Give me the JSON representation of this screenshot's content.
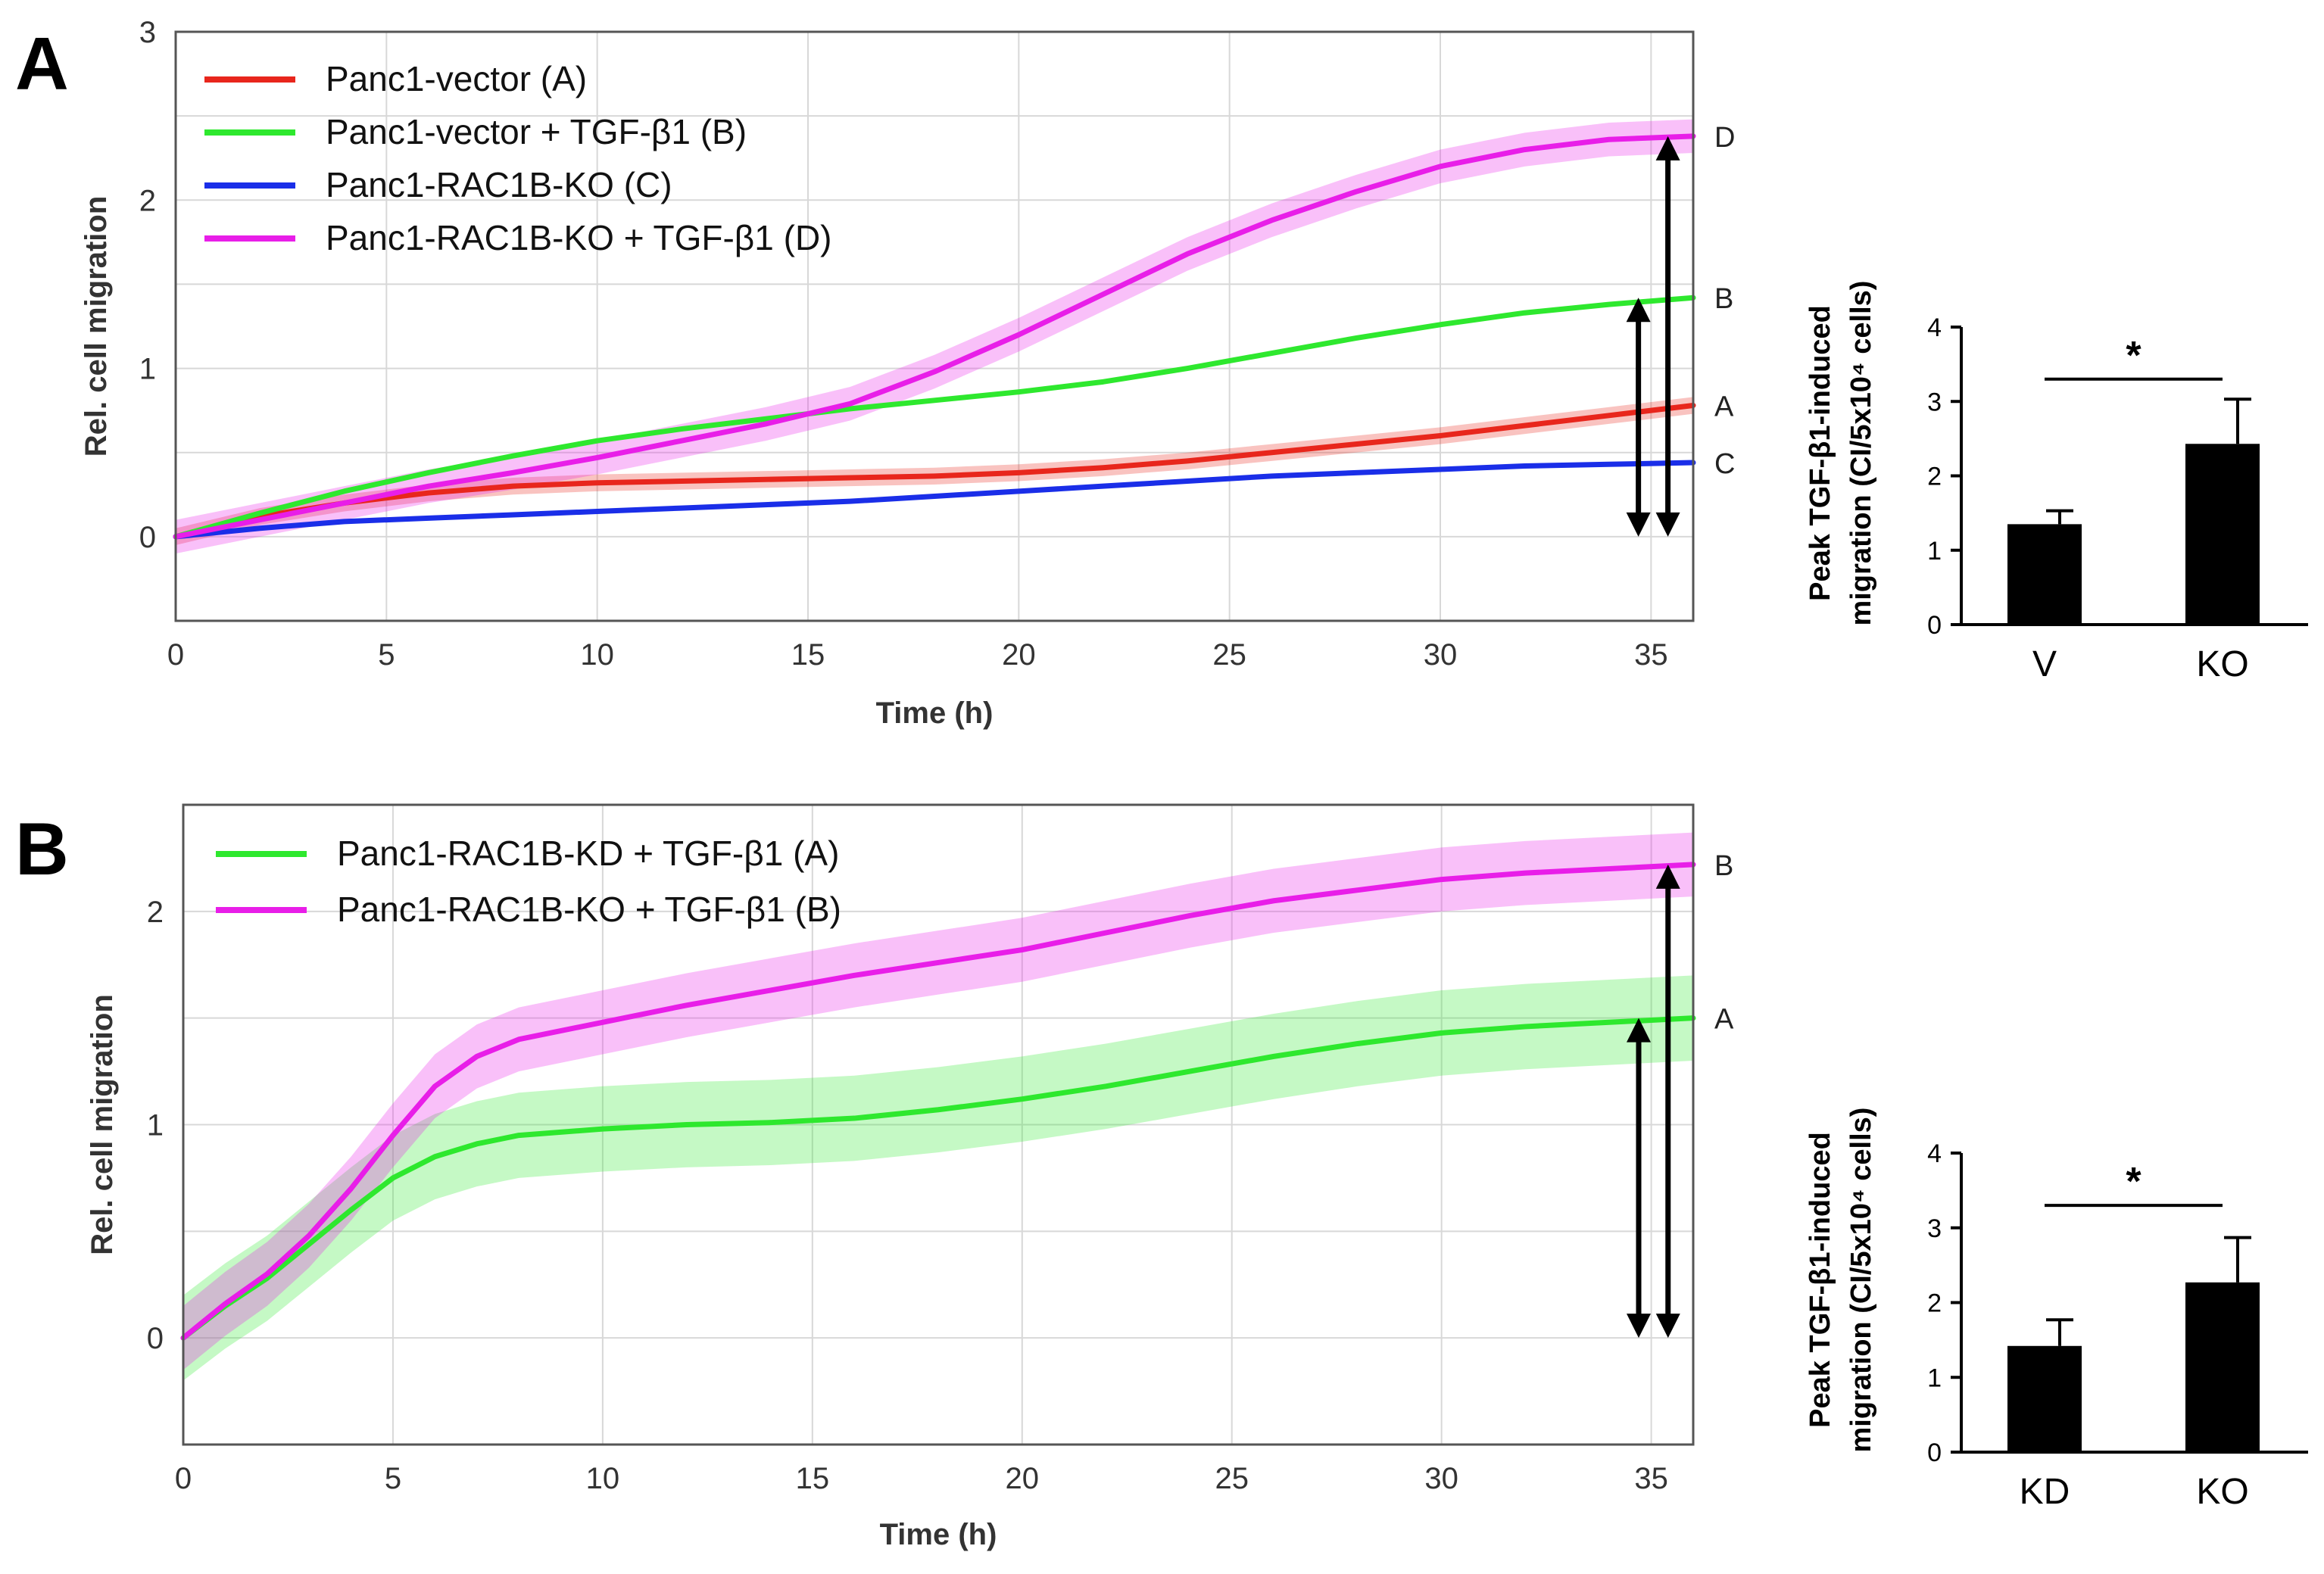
{
  "panels": [
    {
      "id": "A",
      "panel_label": "A",
      "line_chart": {
        "type": "line",
        "xlabel": "Time (h)",
        "ylabel": "Rel. cell migration",
        "xlim": [
          0,
          36
        ],
        "ylim": [
          -0.5,
          3
        ],
        "xticks": [
          0,
          5,
          10,
          15,
          20,
          25,
          30,
          35
        ],
        "yticks": [
          0,
          1,
          2,
          3
        ],
        "grid": true,
        "legend_position": "top-left",
        "series": [
          {
            "name": "Panc1-vector (A)",
            "end_label": "A",
            "color": "#e8261c",
            "x": [
              0,
              2,
              4,
              6,
              8,
              10,
              12,
              14,
              16,
              18,
              20,
              22,
              24,
              26,
              28,
              30,
              32,
              34,
              36
            ],
            "y": [
              0,
              0.12,
              0.2,
              0.26,
              0.3,
              0.32,
              0.33,
              0.34,
              0.35,
              0.36,
              0.38,
              0.41,
              0.45,
              0.5,
              0.55,
              0.6,
              0.66,
              0.72,
              0.78
            ],
            "err": 0.05
          },
          {
            "name": "Panc1-vector + TGF-β1 (B)",
            "end_label": "B",
            "color": "#2ee82e",
            "x": [
              0,
              2,
              4,
              6,
              8,
              10,
              12,
              14,
              16,
              18,
              20,
              22,
              24,
              26,
              28,
              30,
              32,
              34,
              36
            ],
            "y": [
              0,
              0.14,
              0.27,
              0.38,
              0.48,
              0.57,
              0.64,
              0.7,
              0.76,
              0.81,
              0.86,
              0.92,
              1.0,
              1.09,
              1.18,
              1.26,
              1.33,
              1.38,
              1.42
            ],
            "err": 0.0
          },
          {
            "name": "Panc1-RAC1B-KO (C)",
            "end_label": "C",
            "color": "#1a2ee8",
            "x": [
              0,
              2,
              4,
              6,
              8,
              10,
              12,
              14,
              16,
              18,
              20,
              22,
              24,
              26,
              28,
              30,
              32,
              34,
              36
            ],
            "y": [
              0,
              0.05,
              0.09,
              0.11,
              0.13,
              0.15,
              0.17,
              0.19,
              0.21,
              0.24,
              0.27,
              0.3,
              0.33,
              0.36,
              0.38,
              0.4,
              0.42,
              0.43,
              0.44
            ],
            "err": 0.0
          },
          {
            "name": "Panc1-RAC1B-KO + TGF-β1 (D)",
            "end_label": "D",
            "color": "#e81ee8",
            "x": [
              0,
              2,
              4,
              6,
              8,
              10,
              12,
              14,
              16,
              18,
              20,
              22,
              24,
              26,
              28,
              30,
              32,
              34,
              36
            ],
            "y": [
              0,
              0.1,
              0.2,
              0.3,
              0.38,
              0.47,
              0.57,
              0.67,
              0.79,
              0.98,
              1.2,
              1.44,
              1.68,
              1.88,
              2.05,
              2.2,
              2.3,
              2.36,
              2.38
            ],
            "err": 0.1
          }
        ],
        "arrows": [
          {
            "x": 34.7,
            "y_from": 0,
            "y_to": 1.42
          },
          {
            "x": 35.4,
            "y_from": 0,
            "y_to": 2.38
          }
        ]
      },
      "bar_chart": {
        "type": "bar",
        "ylabel_line1": "Peak TGF-β1-induced",
        "ylabel_line2": "migration (CI/5x10⁴ cells)",
        "categories": [
          "V",
          "KO"
        ],
        "values": [
          1.35,
          2.43
        ],
        "errors": [
          0.18,
          0.6
        ],
        "ylim": [
          0,
          4
        ],
        "yticks": [
          0,
          1,
          2,
          3,
          4
        ],
        "significance": "*"
      }
    },
    {
      "id": "B",
      "panel_label": "B",
      "line_chart": {
        "type": "line",
        "xlabel": "Time (h)",
        "ylabel": "Rel. cell migration",
        "xlim": [
          0,
          36
        ],
        "ylim": [
          -0.5,
          2.5
        ],
        "xticks": [
          0,
          5,
          10,
          15,
          20,
          25,
          30,
          35
        ],
        "yticks": [
          0,
          1,
          2
        ],
        "grid": true,
        "legend_position": "top-left",
        "series": [
          {
            "name": "Panc1-RAC1B-KD + TGF-β1 (A)",
            "end_label": "A",
            "color": "#2ee82e",
            "x": [
              0,
              1,
              2,
              3,
              4,
              5,
              6,
              7,
              8,
              10,
              12,
              14,
              16,
              18,
              20,
              22,
              24,
              26,
              28,
              30,
              32,
              34,
              36
            ],
            "y": [
              0,
              0.15,
              0.28,
              0.44,
              0.6,
              0.75,
              0.85,
              0.91,
              0.95,
              0.98,
              1.0,
              1.01,
              1.03,
              1.07,
              1.12,
              1.18,
              1.25,
              1.32,
              1.38,
              1.43,
              1.46,
              1.48,
              1.5
            ],
            "err": 0.2
          },
          {
            "name": "Panc1-RAC1B-KO + TGF-β1 (B)",
            "end_label": "B",
            "color": "#e81ee8",
            "x": [
              0,
              1,
              2,
              3,
              4,
              5,
              6,
              7,
              8,
              10,
              12,
              14,
              16,
              18,
              20,
              22,
              24,
              26,
              28,
              30,
              32,
              34,
              36
            ],
            "y": [
              0,
              0.16,
              0.3,
              0.48,
              0.7,
              0.95,
              1.18,
              1.32,
              1.4,
              1.48,
              1.56,
              1.63,
              1.7,
              1.76,
              1.82,
              1.9,
              1.98,
              2.05,
              2.1,
              2.15,
              2.18,
              2.2,
              2.22
            ],
            "err": 0.15
          }
        ],
        "arrows": [
          {
            "x": 34.7,
            "y_from": 0,
            "y_to": 1.5
          },
          {
            "x": 35.4,
            "y_from": 0,
            "y_to": 2.22
          }
        ]
      },
      "bar_chart": {
        "type": "bar",
        "ylabel_line1": "Peak TGF-β1-induced",
        "ylabel_line2": "migration (CI/5x10⁴ cells)",
        "categories": [
          "KD",
          "KO"
        ],
        "values": [
          1.42,
          2.27
        ],
        "errors": [
          0.35,
          0.6
        ],
        "ylim": [
          0,
          4
        ],
        "yticks": [
          0,
          1,
          2,
          3,
          4
        ],
        "significance": "*"
      }
    }
  ]
}
